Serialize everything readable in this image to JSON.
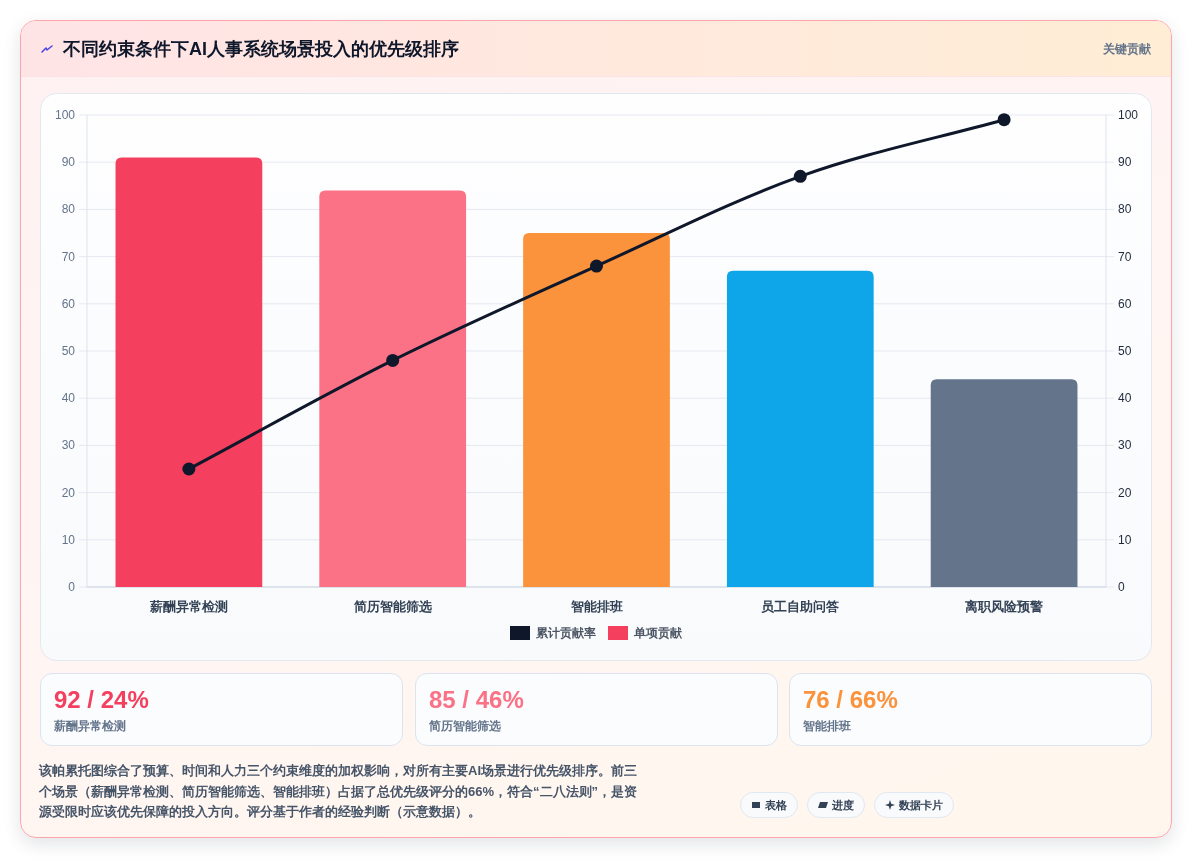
{
  "chart_data": {
    "type": "bar",
    "title": "不同约束条件下AI人事系统场景投入的优先级排序",
    "categories": [
      "薪酬异常检测",
      "简历智能筛选",
      "智能排班",
      "员工自助问答",
      "离职风险预警"
    ],
    "series": [
      {
        "name": "累计贡献率",
        "type": "line",
        "axis": "y2",
        "color": "#0f172a",
        "marker": "circle",
        "values": [
          25,
          48,
          68,
          87,
          99
        ]
      },
      {
        "name": "单项贡献",
        "type": "bar",
        "color": "#f43f5e",
        "colors": [
          "#f43f5e",
          "#fb7185",
          "#fb923c",
          "#0ea5e9",
          "#64748b"
        ],
        "values": [
          91,
          84,
          75,
          67,
          44
        ]
      }
    ],
    "ylim": [
      0,
      100
    ],
    "yticks": [
      0,
      10,
      20,
      30,
      40,
      50,
      60,
      70,
      80,
      90,
      100
    ],
    "y2lim": [
      0,
      100
    ],
    "y2ticks": [
      0,
      10,
      20,
      30,
      40,
      50,
      60,
      70,
      80,
      90,
      100
    ],
    "grid": "y",
    "legend": "bottom",
    "annotations": [
      "关键贡献",
      "92 / 24%",
      "薪酬异常检测",
      "85 / 46%",
      "简历智能筛选",
      "76 / 66%",
      "智能排班",
      "该帕累托图综合了预算、时间和人力三个约束维度的加权影响，对所有主要AI场景进行优先级排序。前三个场景（薪酬异常检测、简历智能筛选、智能排班）占据了总优先级评分的66%，符合“二八法则”，是资源受限时应该优先保障的投入方向。评分基于作者的经验判断（示意数据）。",
      "表格",
      "进度",
      "数据卡片"
    ]
  }
}
